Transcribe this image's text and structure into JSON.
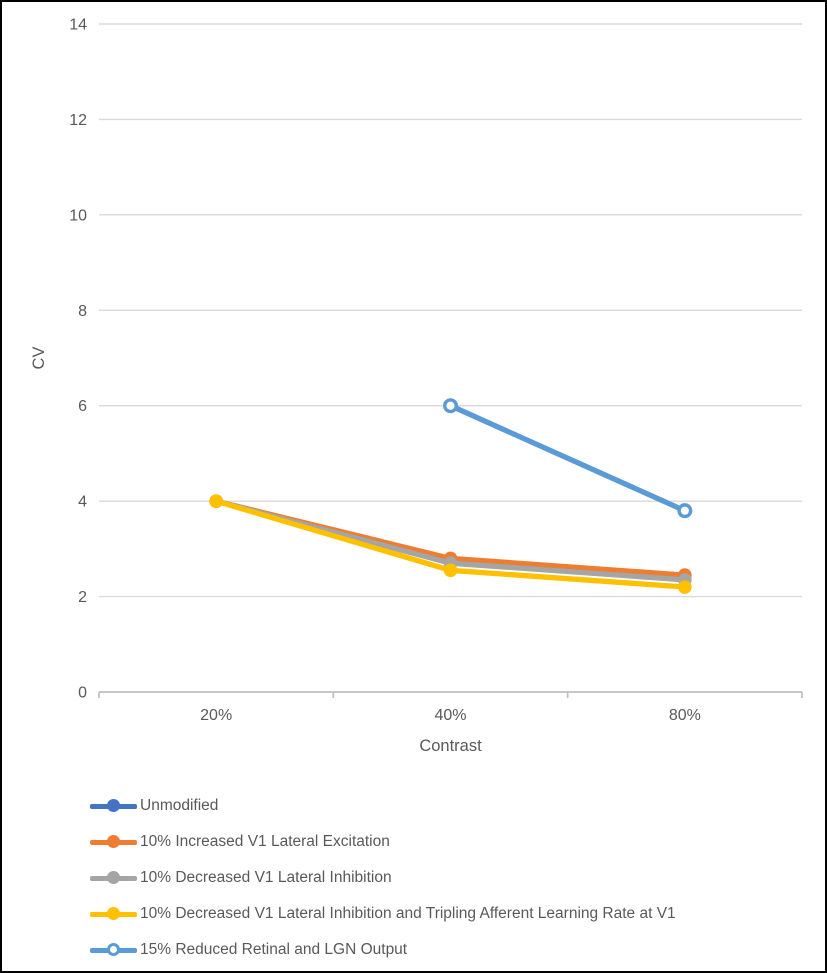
{
  "chart_data": {
    "type": "line",
    "title": "",
    "categories": [
      "20%",
      "40%",
      "80%"
    ],
    "xlabel": "Contrast",
    "ylabel": "CV",
    "ylim": [
      0,
      14
    ],
    "yticks": [
      0,
      2,
      4,
      6,
      8,
      10,
      12,
      14
    ],
    "grid": true,
    "legend_position": "bottom-left",
    "gridline_color": "#D9D9D9",
    "axis_line_color": "#BFBFBF",
    "tick_label_color": "#595959",
    "series": [
      {
        "name": "Unmodified",
        "color": "#4472C4",
        "marker": "filled",
        "values": [
          null,
          null,
          null
        ]
      },
      {
        "name": "10% Increased V1 Lateral Excitation",
        "color": "#ED7D31",
        "marker": "filled",
        "values": [
          4.0,
          2.8,
          2.45
        ]
      },
      {
        "name": "10% Decreased V1 Lateral Inhibition",
        "color": "#A5A5A5",
        "marker": "filled",
        "values": [
          4.0,
          2.7,
          2.35
        ]
      },
      {
        "name": "10% Decreased V1 Lateral Inhibition and Tripling Afferent Learning Rate at V1",
        "color": "#FFC000",
        "marker": "filled",
        "values": [
          4.0,
          2.55,
          2.2
        ]
      },
      {
        "name": "15% Reduced Retinal and LGN Output",
        "color": "#5B9BD5",
        "marker": "open",
        "values": [
          null,
          6.0,
          3.8
        ]
      }
    ]
  }
}
